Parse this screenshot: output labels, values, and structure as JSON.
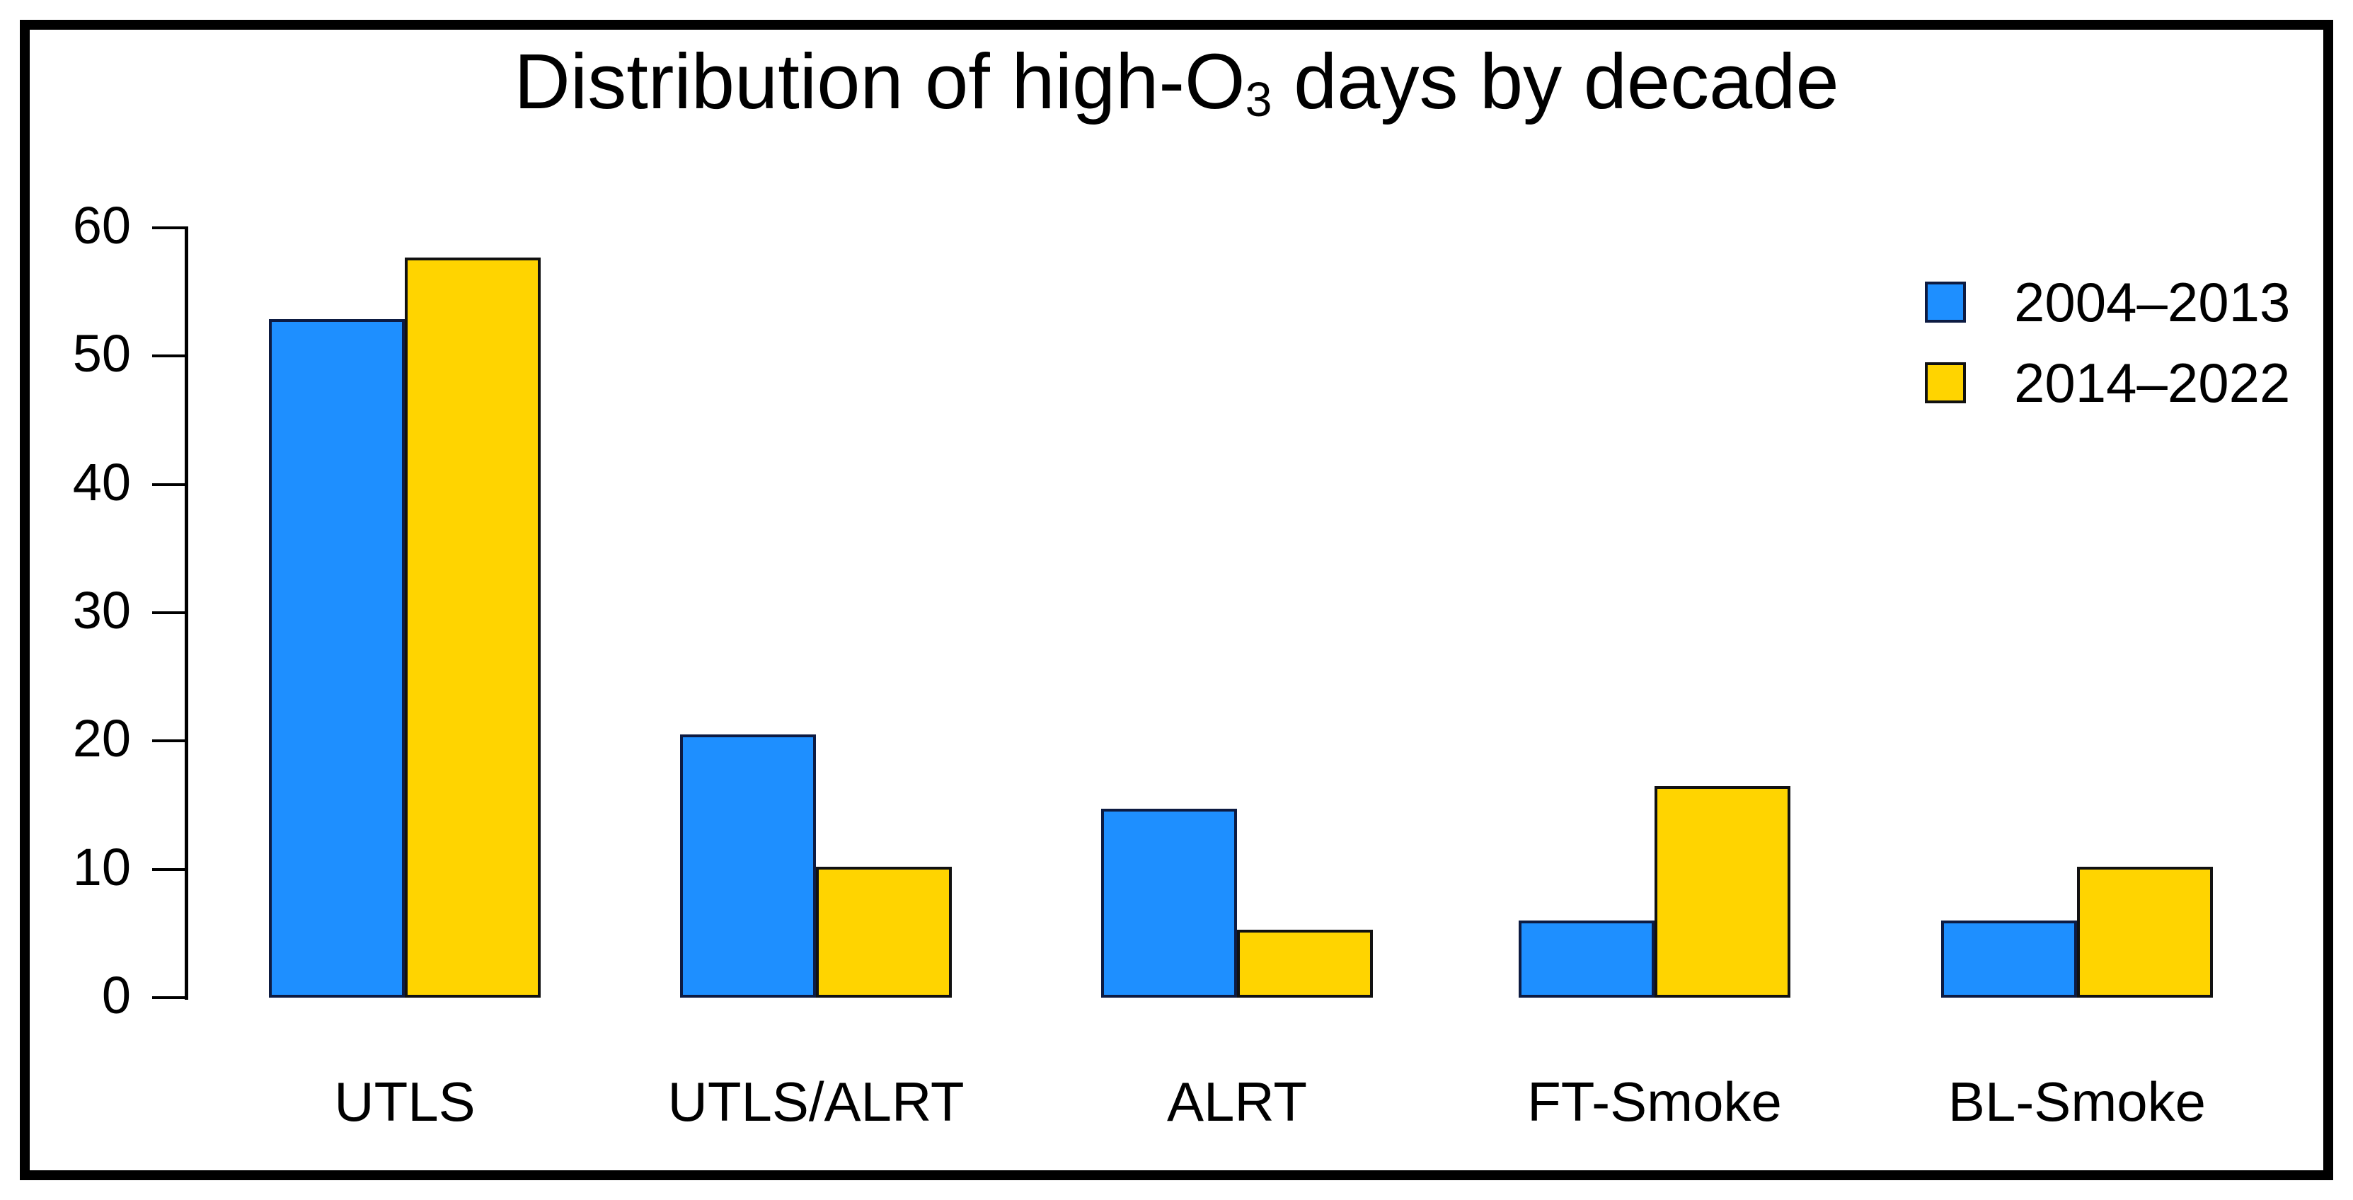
{
  "title": {
    "prefix": "Distribution of high-O",
    "subscript": "3",
    "suffix": " days by decade"
  },
  "legend": {
    "items": [
      {
        "label": "2004–2013",
        "color": "#1E8FFF",
        "border": "#0d1b42"
      },
      {
        "label": "2014–2022",
        "color": "#FFD400",
        "border": "#111111"
      }
    ]
  },
  "axis": {
    "yticks_labels": [
      "0",
      "10",
      "20",
      "30",
      "40",
      "50",
      "60"
    ]
  },
  "chart_data": {
    "type": "bar",
    "title": "Distribution of high-O₃ days by decade",
    "categories": [
      "UTLS",
      "UTLS/ALRT",
      "ALRT",
      "FT-Smoke",
      "BL-Smoke"
    ],
    "series": [
      {
        "name": "2004–2013",
        "color": "#1E8FFF",
        "border": "#0d1b42",
        "values": [
          52.9,
          20.5,
          14.7,
          6.0,
          6.0
        ]
      },
      {
        "name": "2014–2022",
        "color": "#FFD400",
        "border": "#111111",
        "values": [
          57.7,
          10.2,
          5.3,
          16.5,
          10.2
        ]
      }
    ],
    "xlabel": "",
    "ylabel": "",
    "ylim": [
      0,
      60
    ],
    "yticks": [
      0,
      10,
      20,
      30,
      40,
      50,
      60
    ],
    "grid": false,
    "legend_position": "upper right",
    "bar_outline": true,
    "background": "#ffffff"
  }
}
